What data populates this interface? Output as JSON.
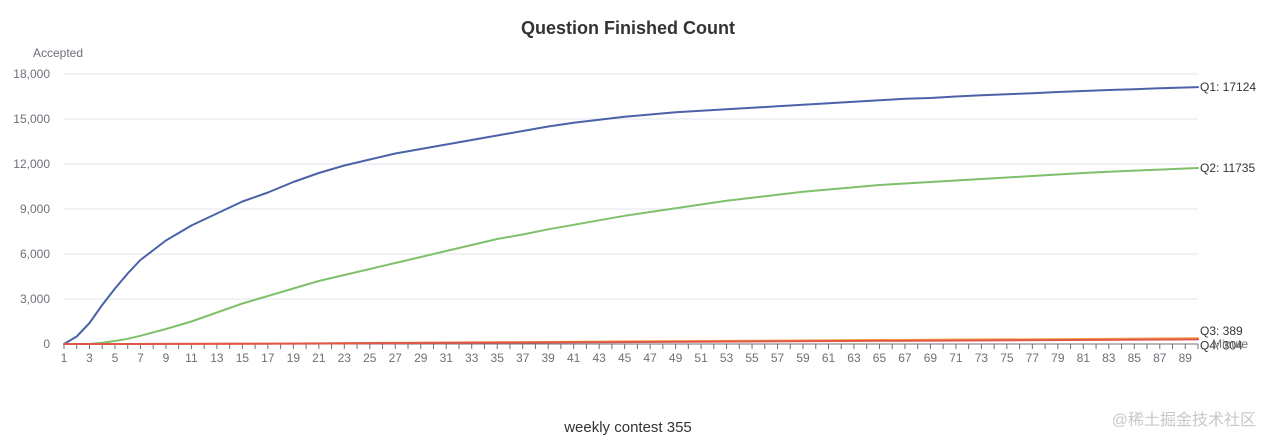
{
  "chart_data": {
    "type": "line",
    "title": "Question Finished Count",
    "subtitle": "weekly contest 355",
    "ylabel": "Accepted",
    "xlabel": "Minute",
    "x_start": 1,
    "x_end": 90,
    "xtick_labels": [
      "1",
      "3",
      "5",
      "7",
      "9",
      "11",
      "13",
      "15",
      "17",
      "19",
      "21",
      "23",
      "25",
      "27",
      "29",
      "31",
      "33",
      "35",
      "37",
      "39",
      "41",
      "43",
      "45",
      "47",
      "49",
      "51",
      "53",
      "55",
      "57",
      "59",
      "61",
      "63",
      "65",
      "67",
      "69",
      "71",
      "73",
      "75",
      "77",
      "79",
      "81",
      "83",
      "85",
      "87",
      "89"
    ],
    "ylim": [
      0,
      18000
    ],
    "yticks": [
      0,
      3000,
      6000,
      9000,
      12000,
      15000,
      18000
    ],
    "ytick_labels": [
      "0",
      "3,000",
      "6,000",
      "9,000",
      "12,000",
      "15,000",
      "18,000"
    ],
    "grid": true,
    "series": [
      {
        "name": "Q1",
        "end_label": "Q1: 17124",
        "color": "#4a63a8",
        "points": [
          [
            1,
            0
          ],
          [
            2,
            500
          ],
          [
            3,
            1400
          ],
          [
            4,
            2600
          ],
          [
            5,
            3700
          ],
          [
            6,
            4700
          ],
          [
            7,
            5600
          ],
          [
            9,
            6900
          ],
          [
            11,
            7900
          ],
          [
            13,
            8700
          ],
          [
            15,
            9500
          ],
          [
            17,
            10100
          ],
          [
            19,
            10800
          ],
          [
            21,
            11400
          ],
          [
            23,
            11900
          ],
          [
            25,
            12300
          ],
          [
            27,
            12700
          ],
          [
            29,
            13000
          ],
          [
            31,
            13300
          ],
          [
            33,
            13600
          ],
          [
            35,
            13900
          ],
          [
            37,
            14200
          ],
          [
            39,
            14500
          ],
          [
            41,
            14750
          ],
          [
            43,
            14950
          ],
          [
            45,
            15150
          ],
          [
            47,
            15300
          ],
          [
            49,
            15450
          ],
          [
            51,
            15550
          ],
          [
            53,
            15650
          ],
          [
            55,
            15750
          ],
          [
            57,
            15850
          ],
          [
            59,
            15950
          ],
          [
            61,
            16050
          ],
          [
            63,
            16150
          ],
          [
            65,
            16250
          ],
          [
            67,
            16350
          ],
          [
            69,
            16400
          ],
          [
            71,
            16500
          ],
          [
            73,
            16580
          ],
          [
            75,
            16650
          ],
          [
            77,
            16720
          ],
          [
            79,
            16800
          ],
          [
            81,
            16870
          ],
          [
            83,
            16930
          ],
          [
            85,
            16990
          ],
          [
            87,
            17050
          ],
          [
            89,
            17100
          ],
          [
            90,
            17124
          ]
        ]
      },
      {
        "name": "Q2",
        "end_label": "Q2: 11735",
        "color": "#7fc16b",
        "points": [
          [
            1,
            0
          ],
          [
            3,
            0
          ],
          [
            4,
            80
          ],
          [
            5,
            200
          ],
          [
            6,
            350
          ],
          [
            7,
            550
          ],
          [
            9,
            1000
          ],
          [
            11,
            1500
          ],
          [
            13,
            2100
          ],
          [
            15,
            2700
          ],
          [
            17,
            3200
          ],
          [
            19,
            3700
          ],
          [
            21,
            4200
          ],
          [
            23,
            4600
          ],
          [
            25,
            5000
          ],
          [
            27,
            5400
          ],
          [
            29,
            5800
          ],
          [
            31,
            6200
          ],
          [
            33,
            6600
          ],
          [
            35,
            7000
          ],
          [
            37,
            7300
          ],
          [
            39,
            7650
          ],
          [
            41,
            7950
          ],
          [
            43,
            8250
          ],
          [
            45,
            8550
          ],
          [
            47,
            8800
          ],
          [
            49,
            9050
          ],
          [
            51,
            9300
          ],
          [
            53,
            9550
          ],
          [
            55,
            9750
          ],
          [
            57,
            9950
          ],
          [
            59,
            10150
          ],
          [
            61,
            10300
          ],
          [
            63,
            10450
          ],
          [
            65,
            10600
          ],
          [
            67,
            10700
          ],
          [
            69,
            10800
          ],
          [
            71,
            10900
          ],
          [
            73,
            11000
          ],
          [
            75,
            11100
          ],
          [
            77,
            11200
          ],
          [
            79,
            11300
          ],
          [
            81,
            11400
          ],
          [
            83,
            11480
          ],
          [
            85,
            11560
          ],
          [
            87,
            11630
          ],
          [
            89,
            11700
          ],
          [
            90,
            11735
          ]
        ]
      },
      {
        "name": "Q3",
        "end_label": "Q3: 389",
        "color": "#f2a13b",
        "points": [
          [
            1,
            0
          ],
          [
            10,
            10
          ],
          [
            20,
            40
          ],
          [
            30,
            90
          ],
          [
            40,
            140
          ],
          [
            50,
            190
          ],
          [
            60,
            240
          ],
          [
            70,
            290
          ],
          [
            80,
            330
          ],
          [
            90,
            389
          ]
        ]
      },
      {
        "name": "Q4",
        "end_label": "Q4: 304",
        "color": "#e0564c",
        "points": [
          [
            1,
            0
          ],
          [
            10,
            8
          ],
          [
            20,
            30
          ],
          [
            30,
            70
          ],
          [
            40,
            110
          ],
          [
            50,
            150
          ],
          [
            60,
            190
          ],
          [
            70,
            230
          ],
          [
            80,
            265
          ],
          [
            90,
            304
          ]
        ]
      }
    ]
  },
  "watermark": "@稀土掘金技术社区"
}
